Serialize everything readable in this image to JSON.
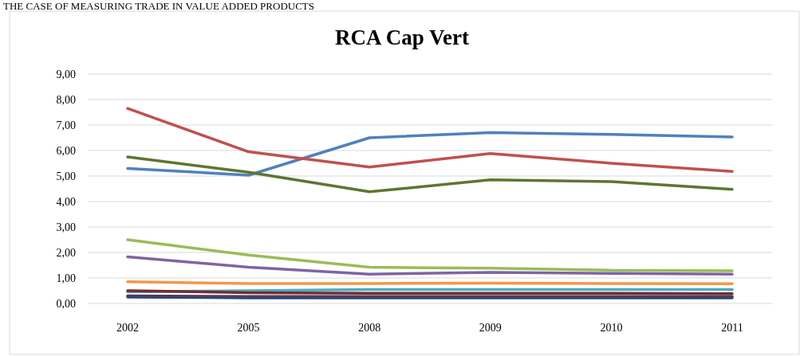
{
  "chart_data": {
    "type": "line",
    "title": "RCA Cap Vert",
    "annotations": [
      "THE CASE OF MEASURING TRADE IN VALUE ADDED PRODUCTS"
    ],
    "categories": [
      "2002",
      "2005",
      "2008",
      "2009",
      "2010",
      "2011"
    ],
    "ylim": [
      0,
      9
    ],
    "yticks": [
      {
        "value": 0,
        "label": "0,00"
      },
      {
        "value": 1,
        "label": "1,00"
      },
      {
        "value": 2,
        "label": "2,00"
      },
      {
        "value": 3,
        "label": "3,00"
      },
      {
        "value": 4,
        "label": "4,00"
      },
      {
        "value": 5,
        "label": "5,00"
      },
      {
        "value": 6,
        "label": "6,00"
      },
      {
        "value": 7,
        "label": "7,00"
      },
      {
        "value": 8,
        "label": "8,00"
      },
      {
        "value": 9,
        "label": "9,00"
      }
    ],
    "grid": "y",
    "marker": "none",
    "line_style": "solid",
    "series": [
      {
        "color": "#4f81bd",
        "values": [
          5.3,
          5.03,
          6.5,
          6.7,
          6.63,
          6.53
        ]
      },
      {
        "color": "#c0504d",
        "values": [
          7.65,
          5.95,
          5.35,
          5.88,
          5.5,
          5.18
        ]
      },
      {
        "color": "#9bbb59",
        "values": [
          2.5,
          1.9,
          1.42,
          1.38,
          1.3,
          1.28
        ]
      },
      {
        "color": "#8064a2",
        "values": [
          1.83,
          1.42,
          1.15,
          1.22,
          1.18,
          1.15
        ]
      },
      {
        "color": "#4bacc6",
        "values": [
          0.45,
          0.5,
          0.55,
          0.55,
          0.55,
          0.55
        ]
      },
      {
        "color": "#f79646",
        "values": [
          0.85,
          0.78,
          0.78,
          0.8,
          0.78,
          0.77
        ]
      },
      {
        "color": "#1f497d",
        "values": [
          0.25,
          0.22,
          0.22,
          0.22,
          0.22,
          0.22
        ]
      },
      {
        "color": "#772c2a",
        "values": [
          0.5,
          0.42,
          0.4,
          0.4,
          0.4,
          0.38
        ]
      },
      {
        "color": "#5f7530",
        "values": [
          5.75,
          5.15,
          4.38,
          4.85,
          4.78,
          4.48
        ]
      },
      {
        "color": "#4d3b62",
        "values": [
          0.3,
          0.27,
          0.27,
          0.27,
          0.27,
          0.27
        ]
      }
    ]
  }
}
